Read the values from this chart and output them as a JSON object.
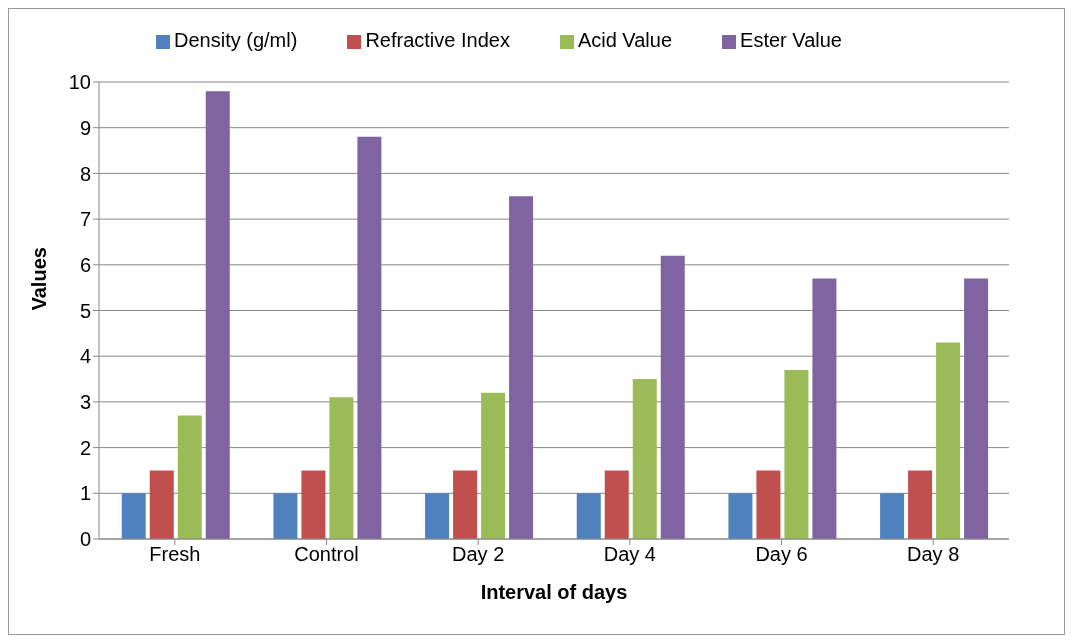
{
  "chart_data": {
    "type": "bar",
    "xlabel": "Interval of days",
    "ylabel": "Values",
    "categories": [
      "Fresh",
      "Control",
      "Day 2",
      "Day 4",
      "Day 6",
      "Day 8"
    ],
    "series": [
      {
        "name": "Density (g/ml)",
        "color": "#4f81bd",
        "values": [
          1.0,
          1.0,
          1.0,
          1.0,
          1.0,
          1.0
        ]
      },
      {
        "name": "Refractive Index",
        "color": "#c0504d",
        "values": [
          1.5,
          1.5,
          1.5,
          1.5,
          1.5,
          1.5
        ]
      },
      {
        "name": "Acid Value",
        "color": "#9bbb59",
        "values": [
          2.7,
          3.1,
          3.2,
          3.5,
          3.7,
          4.3
        ]
      },
      {
        "name": "Ester Value",
        "color": "#8064a2",
        "values": [
          9.8,
          8.8,
          7.5,
          6.2,
          5.7,
          5.7
        ]
      }
    ],
    "ylim": [
      0,
      10
    ],
    "yticks": [
      0,
      1,
      2,
      3,
      4,
      5,
      6,
      7,
      8,
      9,
      10
    ],
    "grid": "y",
    "legend": "top"
  }
}
